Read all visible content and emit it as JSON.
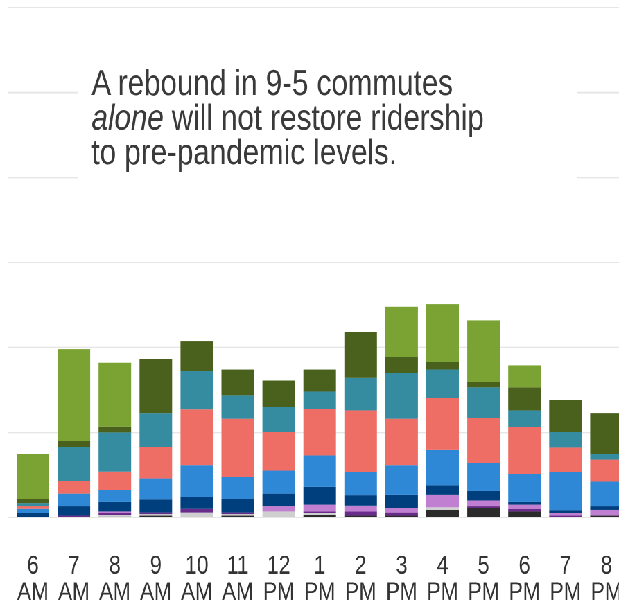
{
  "chart_data": {
    "type": "stacked_bar",
    "title": [
      "A rebound in 9-5 commutes",
      "alone",
      "will not restore ridership",
      "to pre-pandemic levels."
    ],
    "categories": [
      [
        "6",
        "AM"
      ],
      [
        "7",
        "AM"
      ],
      [
        "8",
        "AM"
      ],
      [
        "9",
        "AM"
      ],
      [
        "10",
        "AM"
      ],
      [
        "11",
        "AM"
      ],
      [
        "12",
        "PM"
      ],
      [
        "1",
        "PM"
      ],
      [
        "2",
        "PM"
      ],
      [
        "3",
        "PM"
      ],
      [
        "4",
        "PM"
      ],
      [
        "5",
        "PM"
      ],
      [
        "6",
        "PM"
      ],
      [
        "7",
        "PM"
      ],
      [
        "8",
        "PM"
      ]
    ],
    "series": [
      {
        "color": "#2b2b2b",
        "values": [
          0,
          0,
          1,
          2,
          0,
          2,
          0,
          3,
          2,
          2,
          9,
          11,
          7,
          0,
          2
        ]
      },
      {
        "color": "#cfcfcf",
        "values": [
          0,
          0,
          2,
          2,
          6,
          2,
          7,
          2,
          0,
          0,
          3,
          0,
          0,
          0,
          0
        ]
      },
      {
        "color": "#6a2c8a",
        "values": [
          0,
          2,
          2,
          2,
          4,
          2,
          0,
          2,
          5,
          4,
          0,
          2,
          3,
          2,
          0
        ]
      },
      {
        "color": "#c07fd0",
        "values": [
          0,
          0,
          2,
          0,
          0,
          0,
          6,
          8,
          7,
          5,
          15,
          7,
          5,
          3,
          7
        ]
      },
      {
        "color": "#003f7d",
        "values": [
          5,
          11,
          11,
          15,
          14,
          16,
          15,
          21,
          12,
          16,
          11,
          11,
          3,
          3,
          4
        ]
      },
      {
        "color": "#2e88d6",
        "values": [
          5,
          15,
          14,
          25,
          37,
          26,
          27,
          37,
          27,
          34,
          42,
          33,
          33,
          45,
          29
        ]
      },
      {
        "color": "#ee6e66",
        "values": [
          3,
          15,
          22,
          37,
          66,
          68,
          46,
          55,
          73,
          55,
          61,
          53,
          55,
          29,
          26
        ]
      },
      {
        "color": "#358b9f",
        "values": [
          4,
          40,
          46,
          40,
          45,
          28,
          29,
          20,
          38,
          54,
          33,
          36,
          20,
          19,
          7
        ]
      },
      {
        "color": "#4a611d",
        "values": [
          5,
          7,
          7,
          63,
          35,
          30,
          31,
          26,
          54,
          19,
          9,
          6,
          27,
          37,
          48
        ]
      },
      {
        "color": "#7aa333",
        "values": [
          53,
          108,
          75,
          0,
          0,
          0,
          0,
          0,
          0,
          59,
          68,
          73,
          26,
          0,
          0
        ]
      }
    ],
    "ylim": [
      0,
      600
    ],
    "yticks": [
      0,
      100,
      200,
      300,
      400,
      500,
      600
    ],
    "grid": true
  }
}
